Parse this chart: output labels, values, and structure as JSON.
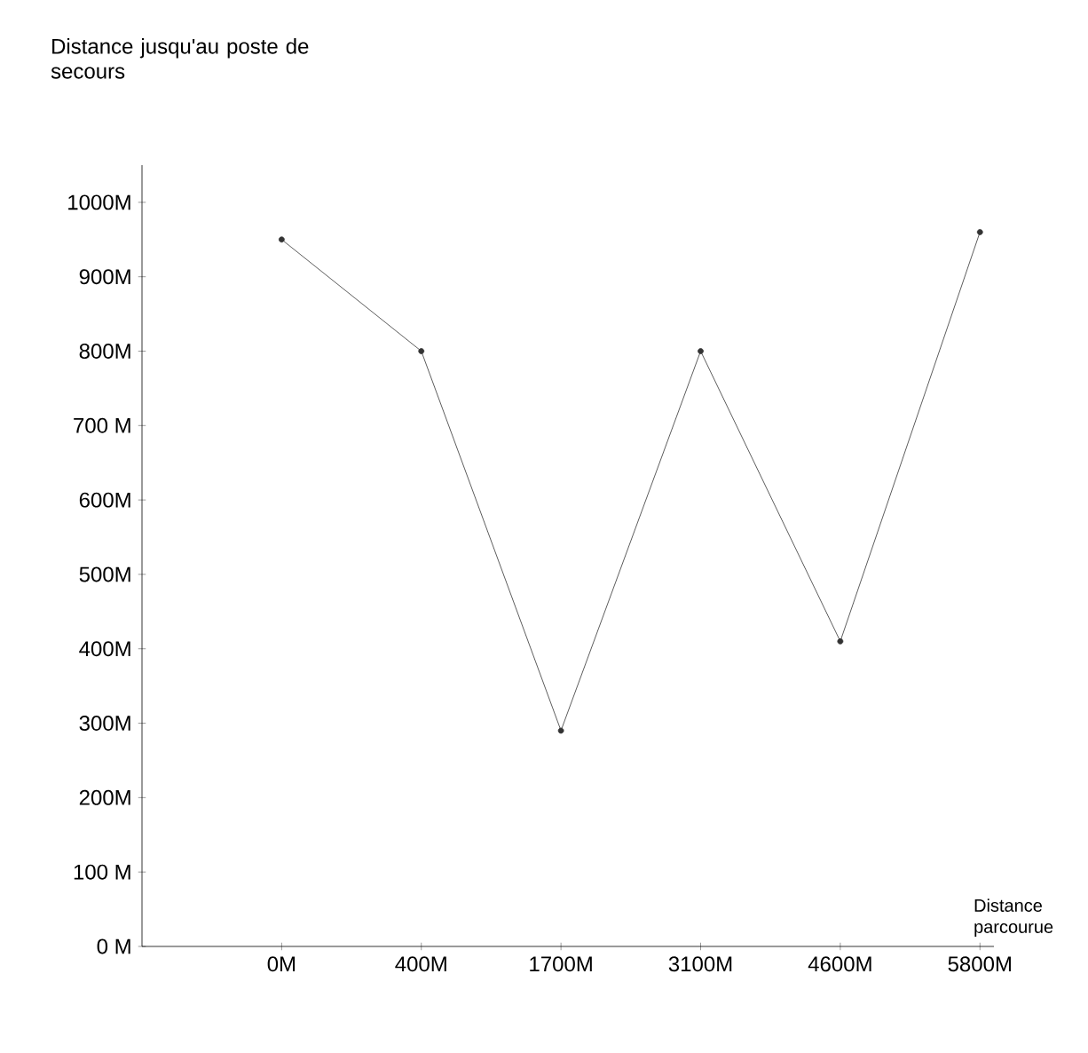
{
  "chart_data": {
    "type": "line",
    "ylabel": "Distance jusqu'au poste de secours",
    "xlabel": "Distance parcourue",
    "categories": [
      "0M",
      "400M",
      "1700M",
      "3100M",
      "4600M",
      "5800M"
    ],
    "series": [
      {
        "color": "#333333",
        "values": [
          950,
          800,
          290,
          800,
          410,
          960
        ]
      }
    ],
    "ylim": [
      0,
      1050
    ],
    "yticks": [
      {
        "value": 0,
        "label": "0 M"
      },
      {
        "value": 100,
        "label": "100 M"
      },
      {
        "value": 200,
        "label": "200M"
      },
      {
        "value": 300,
        "label": "300M"
      },
      {
        "value": 400,
        "label": "400M"
      },
      {
        "value": 500,
        "label": "500M"
      },
      {
        "value": 600,
        "label": "600M"
      },
      {
        "value": 700,
        "label": "700 M"
      },
      {
        "value": 800,
        "label": "800M"
      },
      {
        "value": 900,
        "label": "900M"
      },
      {
        "value": 1000,
        "label": "1000M"
      }
    ],
    "marker": "circle",
    "line_style": "solid",
    "grid": false,
    "legend": false
  }
}
